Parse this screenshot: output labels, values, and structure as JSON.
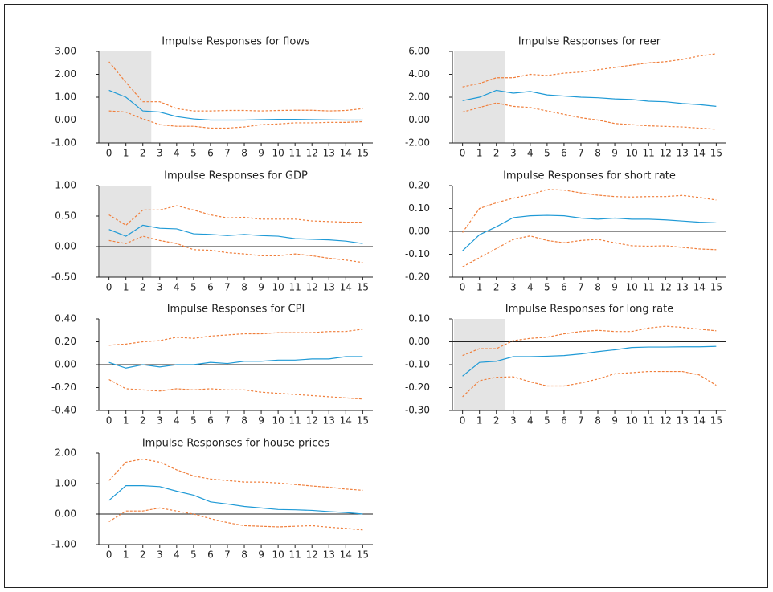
{
  "chart_data": [
    {
      "type": "line",
      "title": "Impulse Responses for flows",
      "x": [
        0,
        1,
        2,
        3,
        4,
        5,
        6,
        7,
        8,
        9,
        10,
        11,
        12,
        13,
        14,
        15
      ],
      "xticks": [
        0,
        1,
        2,
        3,
        4,
        5,
        6,
        7,
        8,
        9,
        10,
        11,
        12,
        13,
        14,
        15
      ],
      "xlim": [
        -0.6,
        15.6
      ],
      "ylim": [
        -1,
        3
      ],
      "yticks": [
        {
          "value": 3,
          "label": "3.00"
        },
        {
          "value": 2,
          "label": "2.00"
        },
        {
          "value": 1,
          "label": "1.00"
        },
        {
          "value": 0,
          "label": "0.00"
        },
        {
          "value": -1,
          "label": "-1.00"
        }
      ],
      "shade_xlim": [
        -0.5,
        2.5
      ],
      "series": [
        {
          "color": "#f07f3c",
          "line_style": "dashed",
          "values": [
            2.55,
            1.65,
            0.8,
            0.8,
            0.5,
            0.4,
            0.4,
            0.42,
            0.42,
            0.4,
            0.42,
            0.43,
            0.43,
            0.4,
            0.42,
            0.5
          ]
        },
        {
          "color": "#1f9ad6",
          "line_style": "solid",
          "values": [
            1.3,
            1.0,
            0.4,
            0.35,
            0.15,
            0.05,
            0,
            0,
            0,
            0.02,
            0.03,
            0.03,
            0.02,
            0.01,
            0,
            0
          ]
        },
        {
          "color": "#f07f3c",
          "line_style": "dashed",
          "values": [
            0.4,
            0.35,
            0.05,
            -0.2,
            -0.27,
            -0.27,
            -0.35,
            -0.35,
            -0.3,
            -0.2,
            -0.17,
            -0.12,
            -0.12,
            -0.1,
            -0.1,
            -0.07
          ]
        }
      ]
    },
    {
      "type": "line",
      "title": "Impulse Responses for reer",
      "x": [
        0,
        1,
        2,
        3,
        4,
        5,
        6,
        7,
        8,
        9,
        10,
        11,
        12,
        13,
        14,
        15
      ],
      "xticks": [
        0,
        1,
        2,
        3,
        4,
        5,
        6,
        7,
        8,
        9,
        10,
        11,
        12,
        13,
        14,
        15
      ],
      "xlim": [
        -0.6,
        15.6
      ],
      "ylim": [
        -2,
        6
      ],
      "yticks": [
        {
          "value": 6,
          "label": "6.00"
        },
        {
          "value": 4,
          "label": "4.00"
        },
        {
          "value": 2,
          "label": "2.00"
        },
        {
          "value": 0,
          "label": "0.00"
        },
        {
          "value": -2,
          "label": "-2.00"
        }
      ],
      "shade_xlim": [
        -0.5,
        2.5
      ],
      "series": [
        {
          "color": "#f07f3c",
          "line_style": "dashed",
          "values": [
            2.9,
            3.2,
            3.7,
            3.7,
            4.0,
            3.9,
            4.1,
            4.2,
            4.4,
            4.6,
            4.8,
            5.0,
            5.1,
            5.3,
            5.6,
            5.8
          ]
        },
        {
          "color": "#1f9ad6",
          "line_style": "solid",
          "values": [
            1.7,
            2.0,
            2.6,
            2.35,
            2.5,
            2.2,
            2.1,
            2.0,
            1.95,
            1.85,
            1.8,
            1.65,
            1.6,
            1.45,
            1.35,
            1.2
          ]
        },
        {
          "color": "#f07f3c",
          "line_style": "dashed",
          "values": [
            0.7,
            1.1,
            1.5,
            1.2,
            1.1,
            0.8,
            0.5,
            0.2,
            0,
            -0.3,
            -0.4,
            -0.5,
            -0.55,
            -0.6,
            -0.7,
            -0.8
          ]
        }
      ]
    },
    {
      "type": "line",
      "title": "Impulse Responses for GDP",
      "x": [
        0,
        1,
        2,
        3,
        4,
        5,
        6,
        7,
        8,
        9,
        10,
        11,
        12,
        13,
        14,
        15
      ],
      "xticks": [
        0,
        1,
        2,
        3,
        4,
        5,
        6,
        7,
        8,
        9,
        10,
        11,
        12,
        13,
        14,
        15
      ],
      "xlim": [
        -0.6,
        15.6
      ],
      "ylim": [
        -0.5,
        1
      ],
      "yticks": [
        {
          "value": 1,
          "label": "1.00"
        },
        {
          "value": 0.5,
          "label": "0.50"
        },
        {
          "value": 0,
          "label": "0.00"
        },
        {
          "value": -0.5,
          "label": "-0.50"
        }
      ],
      "shade_xlim": [
        -0.5,
        2.5
      ],
      "series": [
        {
          "color": "#f07f3c",
          "line_style": "dashed",
          "values": [
            0.52,
            0.35,
            0.6,
            0.6,
            0.67,
            0.6,
            0.52,
            0.47,
            0.48,
            0.45,
            0.45,
            0.45,
            0.42,
            0.41,
            0.4,
            0.4
          ]
        },
        {
          "color": "#1f9ad6",
          "line_style": "solid",
          "values": [
            0.28,
            0.17,
            0.35,
            0.3,
            0.29,
            0.21,
            0.2,
            0.18,
            0.2,
            0.18,
            0.17,
            0.13,
            0.12,
            0.11,
            0.09,
            0.05
          ]
        },
        {
          "color": "#f07f3c",
          "line_style": "dashed",
          "values": [
            0.1,
            0.05,
            0.17,
            0.1,
            0.05,
            -0.05,
            -0.06,
            -0.1,
            -0.12,
            -0.15,
            -0.15,
            -0.12,
            -0.15,
            -0.19,
            -0.22,
            -0.26
          ]
        }
      ]
    },
    {
      "type": "line",
      "title": "Impulse Responses for short rate",
      "x": [
        0,
        1,
        2,
        3,
        4,
        5,
        6,
        7,
        8,
        9,
        10,
        11,
        12,
        13,
        14,
        15
      ],
      "xticks": [
        0,
        1,
        2,
        3,
        4,
        5,
        6,
        7,
        8,
        9,
        10,
        11,
        12,
        13,
        14,
        15
      ],
      "xlim": [
        -0.6,
        15.6
      ],
      "ylim": [
        -0.2,
        0.2
      ],
      "yticks": [
        {
          "value": 0.2,
          "label": "0.20"
        },
        {
          "value": 0.1,
          "label": "0.10"
        },
        {
          "value": 0,
          "label": "0.00"
        },
        {
          "value": -0.1,
          "label": "-0.10"
        },
        {
          "value": -0.2,
          "label": "-0.20"
        }
      ],
      "series": [
        {
          "color": "#f07f3c",
          "line_style": "dashed",
          "values": [
            -0.005,
            0.1,
            0.125,
            0.145,
            0.16,
            0.183,
            0.18,
            0.168,
            0.158,
            0.152,
            0.15,
            0.152,
            0.152,
            0.157,
            0.148,
            0.137
          ]
        },
        {
          "color": "#1f9ad6",
          "line_style": "solid",
          "values": [
            -0.085,
            -0.015,
            0.02,
            0.06,
            0.068,
            0.07,
            0.068,
            0.058,
            0.053,
            0.058,
            0.053,
            0.053,
            0.05,
            0.045,
            0.04,
            0.037
          ]
        },
        {
          "color": "#f07f3c",
          "line_style": "dashed",
          "values": [
            -0.155,
            -0.115,
            -0.075,
            -0.035,
            -0.02,
            -0.04,
            -0.05,
            -0.04,
            -0.035,
            -0.05,
            -0.063,
            -0.065,
            -0.063,
            -0.07,
            -0.077,
            -0.08
          ]
        }
      ]
    },
    {
      "type": "line",
      "title": "Impulse Responses for CPI",
      "x": [
        0,
        1,
        2,
        3,
        4,
        5,
        6,
        7,
        8,
        9,
        10,
        11,
        12,
        13,
        14,
        15
      ],
      "xticks": [
        0,
        1,
        2,
        3,
        4,
        5,
        6,
        7,
        8,
        9,
        10,
        11,
        12,
        13,
        14,
        15
      ],
      "xlim": [
        -0.6,
        15.6
      ],
      "ylim": [
        -0.4,
        0.4
      ],
      "yticks": [
        {
          "value": 0.4,
          "label": "0.40"
        },
        {
          "value": 0.2,
          "label": "0.20"
        },
        {
          "value": 0,
          "label": "0.00"
        },
        {
          "value": -0.2,
          "label": "-0.20"
        },
        {
          "value": -0.4,
          "label": "-0.40"
        }
      ],
      "series": [
        {
          "color": "#f07f3c",
          "line_style": "dashed",
          "values": [
            0.17,
            0.18,
            0.2,
            0.21,
            0.24,
            0.23,
            0.25,
            0.26,
            0.27,
            0.27,
            0.28,
            0.28,
            0.28,
            0.29,
            0.29,
            0.31
          ]
        },
        {
          "color": "#1f9ad6",
          "line_style": "solid",
          "values": [
            0.02,
            -0.03,
            0,
            -0.02,
            0,
            0,
            0.02,
            0.01,
            0.03,
            0.03,
            0.04,
            0.04,
            0.05,
            0.05,
            0.07,
            0.07
          ]
        },
        {
          "color": "#f07f3c",
          "line_style": "dashed",
          "values": [
            -0.13,
            -0.21,
            -0.22,
            -0.23,
            -0.21,
            -0.22,
            -0.21,
            -0.22,
            -0.22,
            -0.24,
            -0.25,
            -0.26,
            -0.27,
            -0.28,
            -0.29,
            -0.3
          ]
        }
      ]
    },
    {
      "type": "line",
      "title": "Impulse Responses for long rate",
      "x": [
        0,
        1,
        2,
        3,
        4,
        5,
        6,
        7,
        8,
        9,
        10,
        11,
        12,
        13,
        14,
        15
      ],
      "xticks": [
        0,
        1,
        2,
        3,
        4,
        5,
        6,
        7,
        8,
        9,
        10,
        11,
        12,
        13,
        14,
        15
      ],
      "xlim": [
        -0.6,
        15.6
      ],
      "ylim": [
        -0.3,
        0.1
      ],
      "yticks": [
        {
          "value": 0.1,
          "label": "0.10"
        },
        {
          "value": 0,
          "label": "0.00"
        },
        {
          "value": -0.1,
          "label": "-0.10"
        },
        {
          "value": -0.2,
          "label": "-0.20"
        },
        {
          "value": -0.3,
          "label": "-0.30"
        }
      ],
      "shade_xlim": [
        -0.5,
        2.5
      ],
      "series": [
        {
          "color": "#f07f3c",
          "line_style": "dashed",
          "values": [
            -0.06,
            -0.03,
            -0.03,
            0.005,
            0.015,
            0.02,
            0.035,
            0.045,
            0.05,
            0.045,
            0.045,
            0.06,
            0.068,
            0.063,
            0.055,
            0.048
          ]
        },
        {
          "color": "#1f9ad6",
          "line_style": "solid",
          "values": [
            -0.15,
            -0.09,
            -0.085,
            -0.065,
            -0.065,
            -0.063,
            -0.06,
            -0.053,
            -0.043,
            -0.035,
            -0.025,
            -0.023,
            -0.023,
            -0.022,
            -0.022,
            -0.02
          ]
        },
        {
          "color": "#f07f3c",
          "line_style": "dashed",
          "values": [
            -0.24,
            -0.17,
            -0.155,
            -0.153,
            -0.175,
            -0.193,
            -0.193,
            -0.18,
            -0.163,
            -0.14,
            -0.135,
            -0.13,
            -0.13,
            -0.13,
            -0.145,
            -0.19
          ]
        }
      ]
    },
    {
      "type": "line",
      "title": "Impulse Responses for house prices",
      "x": [
        0,
        1,
        2,
        3,
        4,
        5,
        6,
        7,
        8,
        9,
        10,
        11,
        12,
        13,
        14,
        15
      ],
      "xticks": [
        0,
        1,
        2,
        3,
        4,
        5,
        6,
        7,
        8,
        9,
        10,
        11,
        12,
        13,
        14,
        15
      ],
      "xlim": [
        -0.6,
        15.6
      ],
      "ylim": [
        -1,
        2
      ],
      "yticks": [
        {
          "value": 2,
          "label": "2.00"
        },
        {
          "value": 1,
          "label": "1.00"
        },
        {
          "value": 0,
          "label": "0.00"
        },
        {
          "value": -1,
          "label": "-1.00"
        }
      ],
      "series": [
        {
          "color": "#f07f3c",
          "line_style": "dashed",
          "values": [
            1.1,
            1.7,
            1.8,
            1.7,
            1.45,
            1.25,
            1.15,
            1.1,
            1.05,
            1.05,
            1.02,
            0.97,
            0.92,
            0.88,
            0.82,
            0.78
          ]
        },
        {
          "color": "#1f9ad6",
          "line_style": "solid",
          "values": [
            0.45,
            0.93,
            0.93,
            0.9,
            0.75,
            0.62,
            0.4,
            0.33,
            0.25,
            0.2,
            0.15,
            0.14,
            0.12,
            0.08,
            0.05,
            0
          ]
        },
        {
          "color": "#f07f3c",
          "line_style": "dashed",
          "values": [
            -0.25,
            0.1,
            0.1,
            0.2,
            0.1,
            0,
            -0.15,
            -0.28,
            -0.38,
            -0.4,
            -0.42,
            -0.4,
            -0.38,
            -0.43,
            -0.47,
            -0.52
          ]
        }
      ]
    }
  ]
}
